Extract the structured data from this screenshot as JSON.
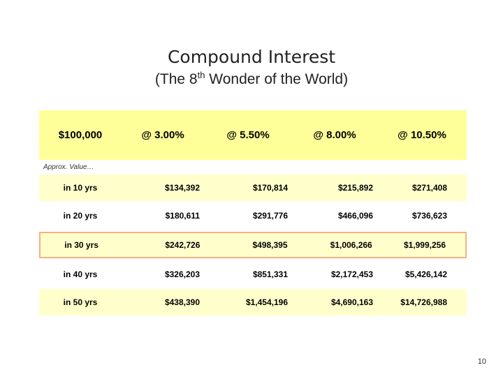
{
  "slide": {
    "title": "Compound Interest",
    "subtitle_pre": "(The 8",
    "subtitle_sup": "th",
    "subtitle_post": " Wonder of the World)",
    "page_number": "10"
  },
  "table": {
    "headers": [
      "$100,000",
      "@ 3.00%",
      "@ 5.50%",
      "@ 8.00%",
      "@ 10.50%"
    ],
    "approx_label": "Approx. Value…",
    "rows": [
      {
        "label": "in 10 yrs",
        "values": [
          "$134,392",
          "$170,814",
          "$215,892",
          "$271,408"
        ]
      },
      {
        "label": "in 20 yrs",
        "values": [
          "$180,611",
          "$291,776",
          "$466,096",
          "$736,623"
        ]
      },
      {
        "label": "in 30 yrs",
        "values": [
          "$242,726",
          "$498,395",
          "$1,006,266",
          "$1,999,256"
        ]
      },
      {
        "label": "in 40 yrs",
        "values": [
          "$326,203",
          "$851,331",
          "$2,172,453",
          "$5,426,142"
        ]
      },
      {
        "label": "in 50 yrs",
        "values": [
          "$438,390",
          "$1,454,196",
          "$4,690,163",
          "$14,726,988"
        ]
      }
    ],
    "highlight_color": "#f4b183",
    "header_bg": "#ffff99",
    "alt_row_bg": "#ffffcc"
  }
}
